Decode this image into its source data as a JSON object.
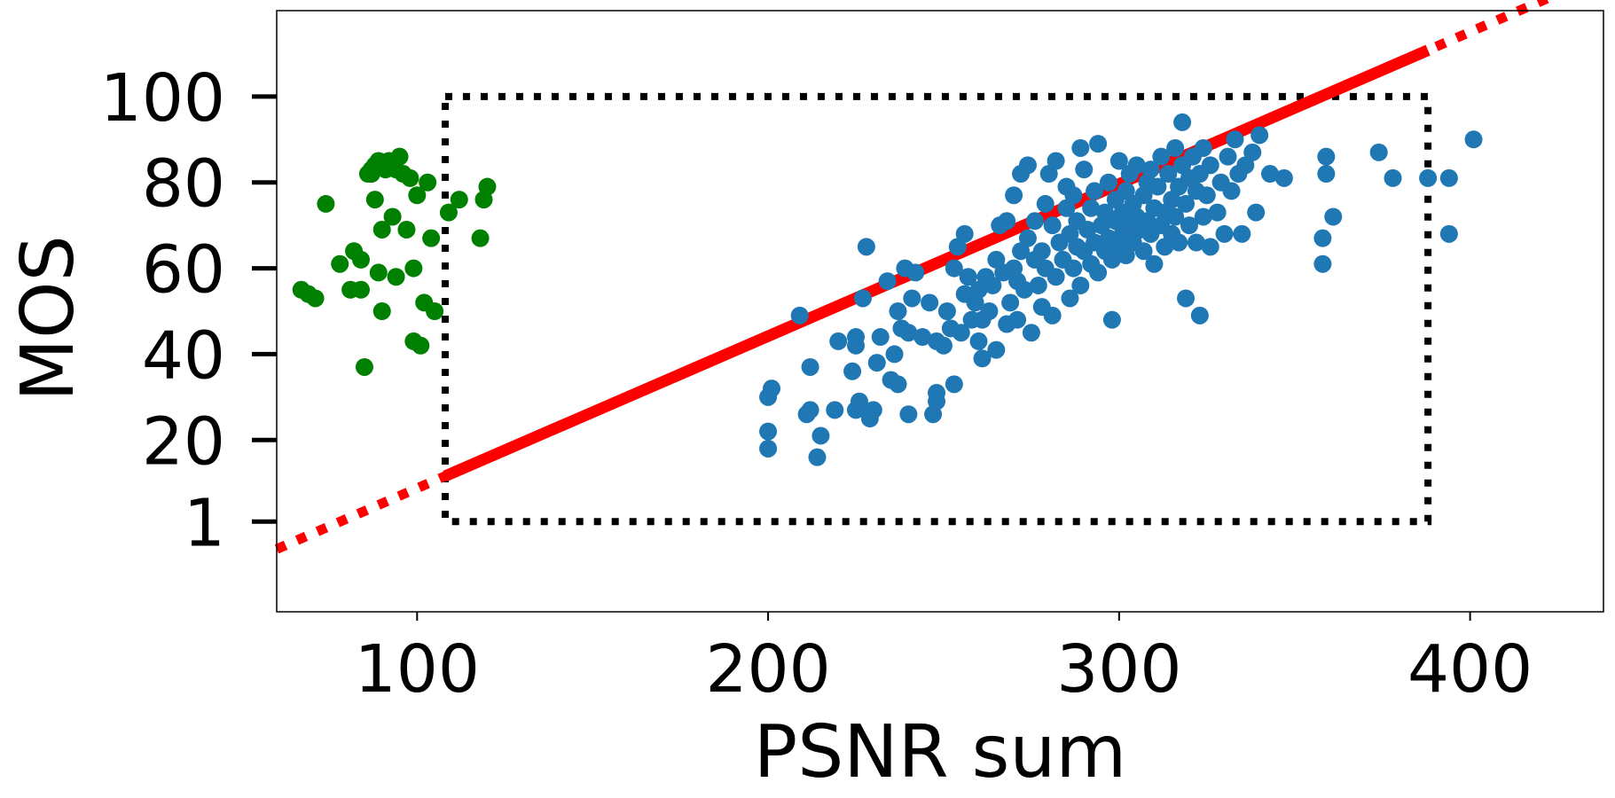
{
  "chart_data": {
    "type": "scatter",
    "title": "",
    "xlabel": "PSNR sum",
    "ylabel": "MOS",
    "xlim": [
      60,
      438
    ],
    "ylim": [
      -20,
      120
    ],
    "x_ticks": [
      100,
      200,
      300,
      400
    ],
    "y_ticks": [
      1,
      20,
      40,
      60,
      80,
      100
    ],
    "grid": false,
    "legend": "none",
    "colors": {
      "green_points": "#008000",
      "blue_points": "#1f77b4",
      "fit_line": "#ff0000",
      "box": "#000000"
    },
    "series": [
      {
        "color_key": "green_points",
        "points": [
          [
            67,
            55
          ],
          [
            69,
            54
          ],
          [
            71,
            53
          ],
          [
            74,
            75
          ],
          [
            78,
            61
          ],
          [
            81,
            55
          ],
          [
            82,
            64
          ],
          [
            84,
            55
          ],
          [
            84,
            62
          ],
          [
            85,
            37
          ],
          [
            86,
            82
          ],
          [
            87,
            82
          ],
          [
            87,
            83
          ],
          [
            88,
            84
          ],
          [
            88,
            76
          ],
          [
            89,
            59
          ],
          [
            89,
            85
          ],
          [
            90,
            69
          ],
          [
            90,
            50
          ],
          [
            91,
            83
          ],
          [
            92,
            85
          ],
          [
            93,
            72
          ],
          [
            94,
            58
          ],
          [
            94,
            83
          ],
          [
            95,
            86
          ],
          [
            96,
            82
          ],
          [
            97,
            69
          ],
          [
            98,
            81
          ],
          [
            99,
            60
          ],
          [
            99,
            43
          ],
          [
            100,
            77
          ],
          [
            101,
            42
          ],
          [
            102,
            52
          ],
          [
            103,
            80
          ],
          [
            104,
            67
          ],
          [
            105,
            50
          ],
          [
            109,
            73
          ],
          [
            112,
            76
          ],
          [
            118,
            67
          ],
          [
            119,
            76
          ],
          [
            120,
            79
          ]
        ]
      },
      {
        "color_key": "blue_points",
        "points": [
          [
            200,
            18
          ],
          [
            200,
            22
          ],
          [
            200,
            30
          ],
          [
            201,
            32
          ],
          [
            209,
            49
          ],
          [
            211,
            26
          ],
          [
            212,
            27
          ],
          [
            212,
            37
          ],
          [
            214,
            16
          ],
          [
            215,
            21
          ],
          [
            219,
            27
          ],
          [
            220,
            43
          ],
          [
            224,
            36
          ],
          [
            225,
            27
          ],
          [
            225,
            42
          ],
          [
            225,
            44
          ],
          [
            226,
            29
          ],
          [
            227,
            53
          ],
          [
            228,
            65
          ],
          [
            229,
            25
          ],
          [
            230,
            27
          ],
          [
            231,
            38
          ],
          [
            232,
            44
          ],
          [
            234,
            57
          ],
          [
            235,
            34
          ],
          [
            236,
            40
          ],
          [
            237,
            33
          ],
          [
            237,
            50
          ],
          [
            238,
            46
          ],
          [
            239,
            60
          ],
          [
            240,
            26
          ],
          [
            240,
            45
          ],
          [
            241,
            53
          ],
          [
            242,
            59
          ],
          [
            244,
            44
          ],
          [
            246,
            52
          ],
          [
            247,
            26
          ],
          [
            248,
            29
          ],
          [
            248,
            31
          ],
          [
            248,
            43
          ],
          [
            250,
            42
          ],
          [
            251,
            50
          ],
          [
            252,
            46
          ],
          [
            253,
            60
          ],
          [
            253,
            33
          ],
          [
            254,
            65
          ],
          [
            255,
            45
          ],
          [
            256,
            68
          ],
          [
            256,
            54
          ],
          [
            257,
            58
          ],
          [
            258,
            48
          ],
          [
            259,
            52
          ],
          [
            260,
            43
          ],
          [
            260,
            55
          ],
          [
            261,
            39
          ],
          [
            261,
            48
          ],
          [
            262,
            58
          ],
          [
            263,
            50
          ],
          [
            264,
            56
          ],
          [
            265,
            41
          ],
          [
            265,
            62
          ],
          [
            266,
            70
          ],
          [
            267,
            59
          ],
          [
            268,
            47
          ],
          [
            268,
            71
          ],
          [
            269,
            52
          ],
          [
            270,
            60
          ],
          [
            270,
            77
          ],
          [
            271,
            48
          ],
          [
            271,
            57
          ],
          [
            272,
            64
          ],
          [
            272,
            82
          ],
          [
            273,
            55
          ],
          [
            274,
            67
          ],
          [
            274,
            84
          ],
          [
            275,
            45
          ],
          [
            276,
            62
          ],
          [
            276,
            71
          ],
          [
            277,
            56
          ],
          [
            278,
            51
          ],
          [
            278,
            64
          ],
          [
            279,
            60
          ],
          [
            279,
            75
          ],
          [
            280,
            82
          ],
          [
            281,
            49
          ],
          [
            281,
            70
          ],
          [
            282,
            58
          ],
          [
            282,
            85
          ],
          [
            283,
            66
          ],
          [
            284,
            62
          ],
          [
            285,
            74
          ],
          [
            285,
            79
          ],
          [
            286,
            53
          ],
          [
            286,
            68
          ],
          [
            287,
            60
          ],
          [
            287,
            77
          ],
          [
            288,
            65
          ],
          [
            288,
            71
          ],
          [
            289,
            56
          ],
          [
            289,
            88
          ],
          [
            290,
            64
          ],
          [
            290,
            83
          ],
          [
            291,
            69
          ],
          [
            292,
            61
          ],
          [
            292,
            74
          ],
          [
            293,
            66
          ],
          [
            293,
            78
          ],
          [
            294,
            59
          ],
          [
            294,
            89
          ],
          [
            295,
            70
          ],
          [
            296,
            64
          ],
          [
            296,
            73
          ],
          [
            297,
            67
          ],
          [
            297,
            80
          ],
          [
            298,
            62
          ],
          [
            298,
            48
          ],
          [
            299,
            76
          ],
          [
            299,
            71
          ],
          [
            300,
            65
          ],
          [
            300,
            85
          ],
          [
            301,
            68
          ],
          [
            301,
            73
          ],
          [
            302,
            78
          ],
          [
            302,
            63
          ],
          [
            303,
            70
          ],
          [
            303,
            82
          ],
          [
            304,
            66
          ],
          [
            304,
            75
          ],
          [
            305,
            72
          ],
          [
            305,
            84
          ],
          [
            306,
            69
          ],
          [
            307,
            77
          ],
          [
            307,
            64
          ],
          [
            308,
            80
          ],
          [
            308,
            71
          ],
          [
            309,
            68
          ],
          [
            309,
            83
          ],
          [
            310,
            74
          ],
          [
            310,
            61
          ],
          [
            311,
            79
          ],
          [
            312,
            70
          ],
          [
            312,
            86
          ],
          [
            313,
            73
          ],
          [
            313,
            65
          ],
          [
            314,
            82
          ],
          [
            315,
            76
          ],
          [
            315,
            68
          ],
          [
            316,
            88
          ],
          [
            316,
            72
          ],
          [
            317,
            79
          ],
          [
            317,
            66
          ],
          [
            318,
            94
          ],
          [
            318,
            84
          ],
          [
            319,
            53
          ],
          [
            319,
            75
          ],
          [
            320,
            81
          ],
          [
            320,
            70
          ],
          [
            321,
            86
          ],
          [
            322,
            66
          ],
          [
            322,
            78
          ],
          [
            323,
            49
          ],
          [
            323,
            82
          ],
          [
            324,
            72
          ],
          [
            324,
            88
          ],
          [
            325,
            77
          ],
          [
            326,
            65
          ],
          [
            326,
            84
          ],
          [
            328,
            73
          ],
          [
            329,
            80
          ],
          [
            330,
            68
          ],
          [
            331,
            86
          ],
          [
            332,
            78
          ],
          [
            333,
            90
          ],
          [
            334,
            82
          ],
          [
            335,
            68
          ],
          [
            336,
            84
          ],
          [
            338,
            87
          ],
          [
            339,
            73
          ],
          [
            340,
            91
          ],
          [
            343,
            82
          ],
          [
            347,
            81
          ],
          [
            358,
            67
          ],
          [
            358,
            61
          ],
          [
            359,
            86
          ],
          [
            359,
            82
          ],
          [
            361,
            72
          ],
          [
            374,
            87
          ],
          [
            378,
            81
          ],
          [
            388,
            81
          ],
          [
            394,
            81
          ],
          [
            394,
            68
          ],
          [
            401,
            90
          ]
        ]
      }
    ],
    "fit_line": {
      "color_key": "fit_line",
      "from": [
        60,
        -5.4
      ],
      "to": [
        438,
        128.5
      ],
      "solid_x_range": [
        108,
        388
      ]
    },
    "box": {
      "color_key": "box",
      "x_range": [
        108,
        388
      ],
      "y_range": [
        1,
        100
      ]
    }
  }
}
